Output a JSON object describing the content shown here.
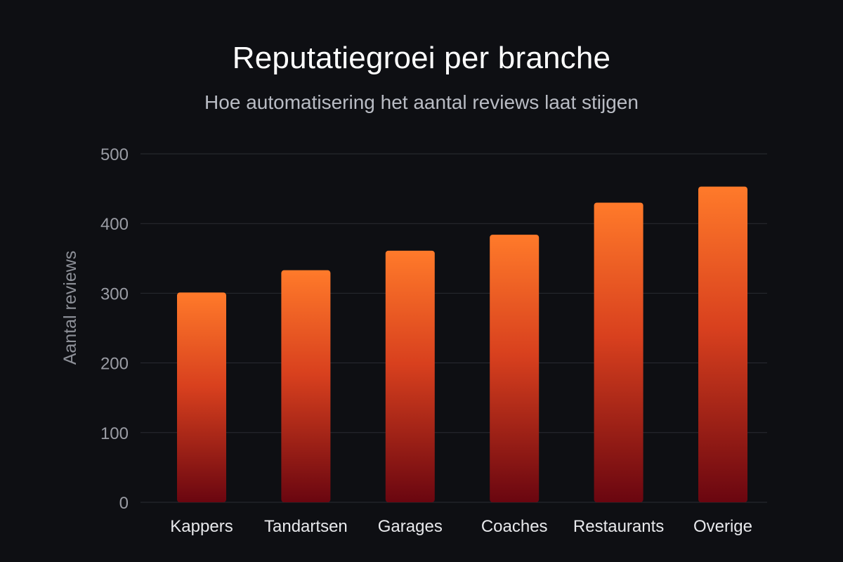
{
  "chart_data": {
    "type": "bar",
    "title": "Reputatiegroei per branche",
    "subtitle": "Hoe automatisering het aantal reviews laat stijgen",
    "xlabel": "",
    "ylabel": "Aantal reviews",
    "categories": [
      "Kappers",
      "Tandartsen",
      "Garages",
      "Coaches",
      "Restaurants",
      "Overige"
    ],
    "values": [
      301,
      333,
      361,
      384,
      430,
      453
    ],
    "ylim": [
      0,
      500
    ],
    "yticks": [
      0,
      100,
      200,
      300,
      400,
      500
    ],
    "grid": true,
    "legend": "none",
    "colors": {
      "background": "#0e0f13",
      "bar_top": "#ff7a2a",
      "bar_bottom": "#6a0610",
      "grid": "#2a2c33"
    }
  }
}
